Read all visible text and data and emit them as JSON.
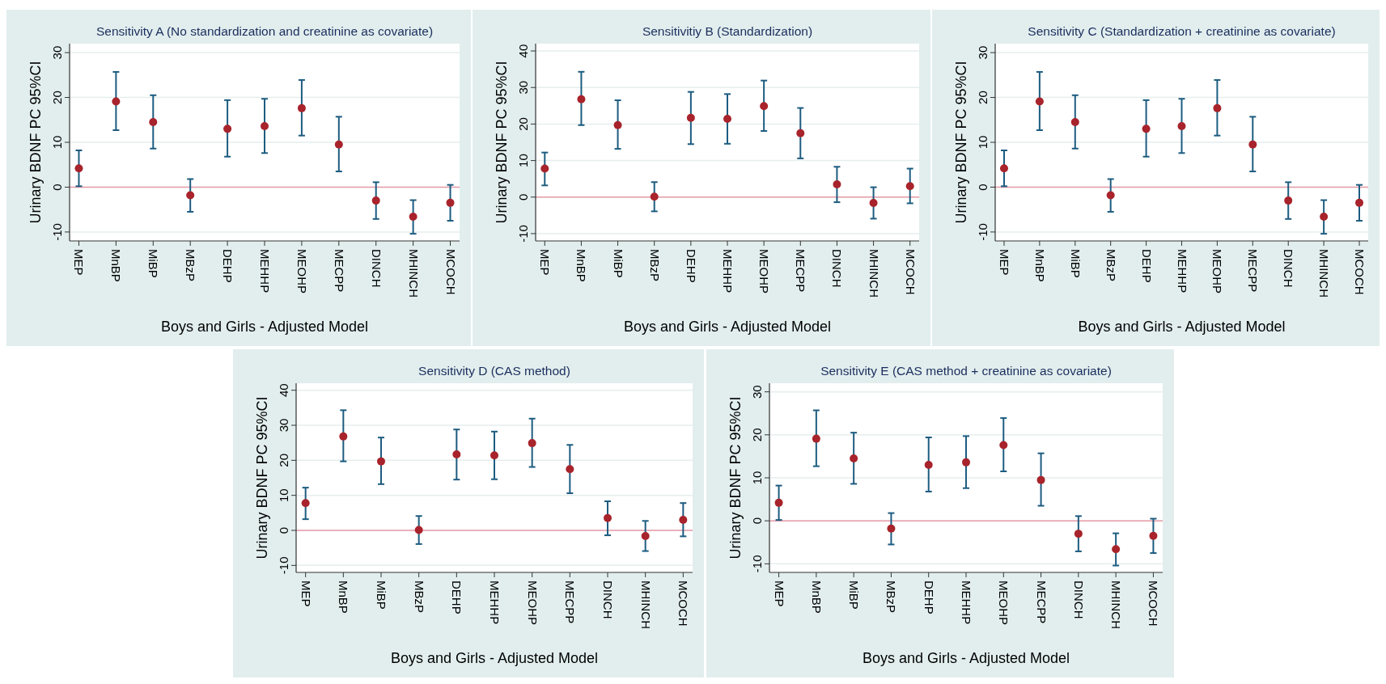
{
  "chart_data": [
    {
      "type": "scatter",
      "title": "Sensitivity A (No standardization and creatinine as covariate)",
      "xlabel": "Boys and Girls - Adjusted Model",
      "ylabel": "Urinary BDNF PC 95%CI",
      "categories": [
        "MEP",
        "MnBP",
        "MiBP",
        "MBzP",
        "DEHP",
        "MEHHP",
        "MEOHP",
        "MECPP",
        "DINCH",
        "MHINCH",
        "MCOCH"
      ],
      "ylim": [
        -12,
        32
      ],
      "yticks": [
        -10,
        0,
        10,
        20,
        30
      ],
      "grid": "y",
      "marker": "circle",
      "ref_lines": [
        {
          "axis": "y",
          "value": 0,
          "color": "#e89aa8"
        }
      ],
      "series": [
        {
          "color": "#a8232b",
          "values": [
            4.2,
            19.1,
            14.5,
            -1.8,
            13,
            13.6,
            17.6,
            9.5,
            -3,
            -6.6,
            -3.5
          ],
          "errors": [
            [
              0.2,
              8.2
            ],
            [
              12.7,
              25.7
            ],
            [
              8.6,
              20.5
            ],
            [
              -5.5,
              1.8
            ],
            [
              6.8,
              19.4
            ],
            [
              7.6,
              19.7
            ],
            [
              11.5,
              23.9
            ],
            [
              3.5,
              15.7
            ],
            [
              -7.1,
              1.1
            ],
            [
              -10.4,
              -2.9
            ],
            [
              -7.5,
              0.5
            ]
          ]
        }
      ]
    },
    {
      "type": "scatter",
      "title": "Sensitivitiy B (Standardization)",
      "xlabel": "Boys and Girls - Adjusted Model",
      "ylabel": "Urinary BDNF PC 95%CI",
      "categories": [
        "MEP",
        "MnBP",
        "MiBP",
        "MBzP",
        "DEHP",
        "MEHHP",
        "MEOHP",
        "MECPP",
        "DINCH",
        "MHINCH",
        "MCOCH"
      ],
      "ylim": [
        -12,
        42
      ],
      "yticks": [
        -10,
        0,
        10,
        20,
        30,
        40
      ],
      "grid": "y",
      "marker": "circle",
      "ref_lines": [
        {
          "axis": "y",
          "value": 0,
          "color": "#e89aa8"
        }
      ],
      "series": [
        {
          "color": "#a8232b",
          "values": [
            7.8,
            26.8,
            19.7,
            0.1,
            21.7,
            21.4,
            24.9,
            17.5,
            3.5,
            -1.6,
            3
          ],
          "errors": [
            [
              3.2,
              12.2
            ],
            [
              19.7,
              34.3
            ],
            [
              13.2,
              26.5
            ],
            [
              -3.9,
              4.1
            ],
            [
              14.5,
              28.8
            ],
            [
              14.6,
              28.2
            ],
            [
              18.1,
              31.9
            ],
            [
              10.6,
              24.4
            ],
            [
              -1.4,
              8.3
            ],
            [
              -5.9,
              2.7
            ],
            [
              -1.7,
              7.8
            ]
          ]
        }
      ]
    },
    {
      "type": "scatter",
      "title": "Sensitivity C (Standardization + creatinine as covariate)",
      "xlabel": "Boys and Girls - Adjusted Model",
      "ylabel": "Urinary BDNF PC 95%CI",
      "categories": [
        "MEP",
        "MnBP",
        "MiBP",
        "MBzP",
        "DEHP",
        "MEHHP",
        "MEOHP",
        "MECPP",
        "DINCH",
        "MHINCH",
        "MCOCH"
      ],
      "ylim": [
        -12,
        32
      ],
      "yticks": [
        -10,
        0,
        10,
        20,
        30
      ],
      "grid": "y",
      "marker": "circle",
      "ref_lines": [
        {
          "axis": "y",
          "value": 0,
          "color": "#e89aa8"
        }
      ],
      "series": [
        {
          "color": "#a8232b",
          "values": [
            4.2,
            19.1,
            14.5,
            -1.8,
            13,
            13.6,
            17.6,
            9.5,
            -3,
            -6.6,
            -3.5
          ],
          "errors": [
            [
              0.2,
              8.2
            ],
            [
              12.7,
              25.7
            ],
            [
              8.6,
              20.5
            ],
            [
              -5.5,
              1.8
            ],
            [
              6.8,
              19.4
            ],
            [
              7.6,
              19.7
            ],
            [
              11.5,
              23.9
            ],
            [
              3.5,
              15.7
            ],
            [
              -7.1,
              1.1
            ],
            [
              -10.4,
              -2.9
            ],
            [
              -7.5,
              0.5
            ]
          ]
        }
      ]
    },
    {
      "type": "scatter",
      "title": "Sensitivity D (CAS method)",
      "xlabel": "Boys and Girls - Adjusted Model",
      "ylabel": "Urinary BDNF PC 95%CI",
      "categories": [
        "MEP",
        "MnBP",
        "MiBP",
        "MBzP",
        "DEHP",
        "MEHHP",
        "MEOHP",
        "MECPP",
        "DINCH",
        "MHINCH",
        "MCOCH"
      ],
      "ylim": [
        -12,
        42
      ],
      "yticks": [
        -10,
        0,
        10,
        20,
        30,
        40
      ],
      "grid": "y",
      "marker": "circle",
      "ref_lines": [
        {
          "axis": "y",
          "value": 0,
          "color": "#e89aa8"
        }
      ],
      "series": [
        {
          "color": "#a8232b",
          "values": [
            7.8,
            26.8,
            19.7,
            0.1,
            21.7,
            21.4,
            24.9,
            17.5,
            3.5,
            -1.6,
            3
          ],
          "errors": [
            [
              3.2,
              12.2
            ],
            [
              19.7,
              34.3
            ],
            [
              13.2,
              26.5
            ],
            [
              -3.9,
              4.1
            ],
            [
              14.5,
              28.8
            ],
            [
              14.6,
              28.2
            ],
            [
              18.1,
              31.9
            ],
            [
              10.6,
              24.4
            ],
            [
              -1.4,
              8.3
            ],
            [
              -5.9,
              2.7
            ],
            [
              -1.7,
              7.8
            ]
          ]
        }
      ]
    },
    {
      "type": "scatter",
      "title": "Sensitivity E (CAS method + creatinine as covariate)",
      "xlabel": "Boys and Girls - Adjusted Model",
      "ylabel": "Urinary BDNF PC 95%CI",
      "categories": [
        "MEP",
        "MnBP",
        "MiBP",
        "MBzP",
        "DEHP",
        "MEHHP",
        "MEOHP",
        "MECPP",
        "DINCH",
        "MHINCH",
        "MCOCH"
      ],
      "ylim": [
        -12,
        32
      ],
      "yticks": [
        -10,
        0,
        10,
        20,
        30
      ],
      "grid": "y",
      "marker": "circle",
      "ref_lines": [
        {
          "axis": "y",
          "value": 0,
          "color": "#e89aa8"
        }
      ],
      "series": [
        {
          "color": "#a8232b",
          "values": [
            4.2,
            19.1,
            14.5,
            -1.8,
            13,
            13.6,
            17.6,
            9.5,
            -3,
            -6.6,
            -3.5
          ],
          "errors": [
            [
              0.2,
              8.2
            ],
            [
              12.7,
              25.7
            ],
            [
              8.6,
              20.5
            ],
            [
              -5.5,
              1.8
            ],
            [
              6.8,
              19.4
            ],
            [
              7.6,
              19.7
            ],
            [
              11.5,
              23.9
            ],
            [
              3.5,
              15.7
            ],
            [
              -7.1,
              1.1
            ],
            [
              -10.4,
              -2.9
            ],
            [
              -7.5,
              0.5
            ]
          ]
        }
      ]
    }
  ]
}
